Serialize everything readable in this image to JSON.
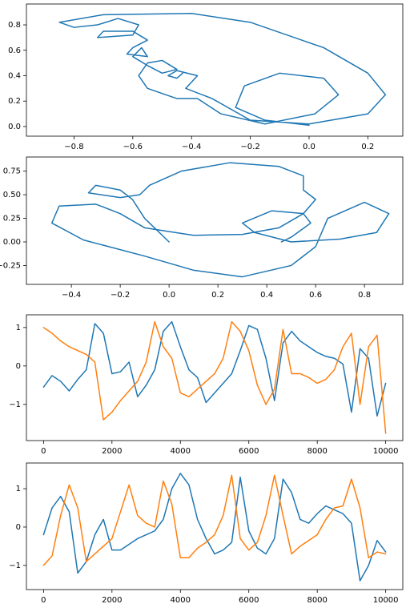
{
  "chart_data": [
    {
      "type": "line",
      "x": [
        0,
        -0.15,
        -0.25,
        -0.22,
        -0.1,
        0.05,
        0.1,
        0.02,
        -0.15,
        -0.3,
        -0.38,
        -0.45,
        -0.55,
        -0.58,
        -0.55,
        -0.5,
        -0.45,
        -0.5,
        -0.55,
        -0.6,
        -0.57,
        -0.55,
        -0.62,
        -0.6,
        -0.55,
        -0.6,
        -0.7,
        -0.72,
        -0.6,
        -0.58,
        -0.65,
        -0.72,
        -0.8,
        -0.85,
        -0.7,
        -0.4,
        -0.2,
        0.05,
        0.2,
        0.26,
        0.2,
        0,
        -0.2,
        -0.33,
        -0.42,
        -0.38,
        -0.45,
        -0.48,
        -0.45,
        -0.43
      ],
      "series": [
        {
          "color": "#1f77b4",
          "values": [
            0.01,
            0.05,
            0.15,
            0.32,
            0.42,
            0.38,
            0.25,
            0.1,
            0.02,
            0.1,
            0.22,
            0.22,
            0.3,
            0.4,
            0.5,
            0.52,
            0.45,
            0.42,
            0.48,
            0.55,
            0.62,
            0.55,
            0.57,
            0.62,
            0.68,
            0.75,
            0.75,
            0.7,
            0.72,
            0.8,
            0.85,
            0.8,
            0.78,
            0.82,
            0.88,
            0.89,
            0.82,
            0.62,
            0.42,
            0.25,
            0.1,
            0.02,
            0.05,
            0.22,
            0.3,
            0.4,
            0.44,
            0.4,
            0.38,
            0.42
          ]
        }
      ],
      "xlim": [
        -0.962,
        0.319
      ],
      "ylim": [
        -0.076,
        0.964
      ],
      "xticks": [
        {
          "value": -0.8,
          "label": "−0.8"
        },
        {
          "value": -0.6,
          "label": "−0.6"
        },
        {
          "value": -0.4,
          "label": "−0.4"
        },
        {
          "value": -0.2,
          "label": "−0.2"
        },
        {
          "value": 0,
          "label": "0.0"
        },
        0.2
      ],
      "yticks": [
        {
          "value": 0,
          "label": "0.0"
        },
        0.2,
        0.4,
        0.6,
        0.8
      ]
    },
    {
      "type": "line",
      "x": [
        0,
        -0.1,
        -0.15,
        -0.2,
        -0.3,
        -0.33,
        -0.2,
        -0.12,
        -0.08,
        0.05,
        0.25,
        0.45,
        0.55,
        0.55,
        0.6,
        0.55,
        0.45,
        0.3,
        0.1,
        -0.1,
        -0.2,
        -0.3,
        -0.45,
        -0.48,
        -0.35,
        -0.1,
        0.1,
        0.3,
        0.5,
        0.6,
        0.65,
        0.8,
        0.9,
        0.85,
        0.7,
        0.5,
        0.35,
        0.3,
        0.42,
        0.55,
        0.58,
        0.5,
        0.46
      ],
      "series": [
        {
          "color": "#1f77b4",
          "values": [
            0,
            0.25,
            0.45,
            0.55,
            0.6,
            0.52,
            0.47,
            0.5,
            0.6,
            0.75,
            0.84,
            0.8,
            0.7,
            0.55,
            0.45,
            0.3,
            0.15,
            0.08,
            0.07,
            0.15,
            0.3,
            0.4,
            0.38,
            0.2,
            0.02,
            -0.15,
            -0.3,
            -0.37,
            -0.25,
            -0.05,
            0.25,
            0.42,
            0.3,
            0.1,
            0.03,
            0,
            0.1,
            0.2,
            0.33,
            0.3,
            0.2,
            0.05,
            0
          ]
        }
      ],
      "xlim": [
        -0.584,
        0.957
      ],
      "ylim": [
        -0.45,
        0.9
      ],
      "xticks": [
        {
          "value": -0.4,
          "label": "−0.4"
        },
        {
          "value": -0.2,
          "label": "−0.2"
        },
        {
          "value": 0,
          "label": "0.0"
        },
        0.2,
        0.4,
        0.6,
        0.8
      ],
      "yticks": [
        {
          "value": -0.25,
          "label": "−0.25"
        },
        {
          "value": 0,
          "label": "0.00"
        },
        0.25,
        {
          "value": 0.5,
          "label": "0.50"
        },
        0.75
      ]
    },
    {
      "type": "line",
      "x": [
        0,
        250,
        500,
        750,
        1000,
        1250,
        1500,
        1750,
        2000,
        2250,
        2500,
        2750,
        3000,
        3250,
        3500,
        3750,
        4000,
        4250,
        4500,
        4750,
        5000,
        5250,
        5500,
        5750,
        6000,
        6250,
        6500,
        6750,
        7000,
        7250,
        7500,
        7750,
        8000,
        8250,
        8500,
        8750,
        9000,
        9250,
        9500,
        9750,
        10000
      ],
      "series": [
        {
          "color": "#1f77b4",
          "values": [
            -0.55,
            -0.25,
            -0.4,
            -0.65,
            -0.35,
            -0.1,
            1.1,
            0.85,
            -0.2,
            -0.15,
            0.1,
            -0.8,
            -0.5,
            -0.1,
            0.9,
            1.15,
            0.5,
            -0.1,
            -0.3,
            -0.95,
            -0.7,
            -0.45,
            -0.2,
            0.4,
            1.05,
            0.95,
            0.2,
            -0.9,
            0.6,
            0.9,
            0.65,
            0.5,
            0.35,
            0.25,
            0.2,
            0.05,
            -1.2,
            0.45,
            0.2,
            -1.3,
            -0.45
          ]
        },
        {
          "color": "#ff7f0e",
          "values": [
            1.0,
            0.85,
            0.65,
            0.5,
            0.4,
            0.3,
            0.1,
            -1.4,
            -1.2,
            -0.9,
            -0.65,
            -0.4,
            0.1,
            1.15,
            0.5,
            0.2,
            -0.7,
            -0.8,
            -0.6,
            -0.4,
            -0.2,
            0.2,
            1.15,
            0.9,
            0.4,
            -0.5,
            -1.0,
            -0.6,
            0.95,
            -0.2,
            -0.2,
            -0.3,
            -0.45,
            -0.35,
            -0.1,
            0.5,
            0.85,
            -1.0,
            0.5,
            0.8,
            -1.75
          ]
        }
      ],
      "xlim": [
        -500,
        10500
      ],
      "ylim": [
        -1.94,
        1.33
      ],
      "xticks": [
        0,
        2000,
        4000,
        6000,
        8000,
        10000
      ],
      "yticks": [
        {
          "value": -1,
          "label": "−1"
        },
        0,
        1
      ]
    },
    {
      "type": "line",
      "x": [
        0,
        250,
        500,
        750,
        1000,
        1250,
        1500,
        1750,
        2000,
        2250,
        2500,
        2750,
        3000,
        3250,
        3500,
        3750,
        4000,
        4250,
        4500,
        4750,
        5000,
        5250,
        5500,
        5750,
        6000,
        6250,
        6500,
        6750,
        7000,
        7250,
        7500,
        7750,
        8000,
        8250,
        8500,
        8750,
        9000,
        9250,
        9500,
        9750,
        10000
      ],
      "series": [
        {
          "color": "#1f77b4",
          "values": [
            -0.2,
            0.5,
            0.8,
            0.4,
            -1.2,
            -0.9,
            -0.2,
            0.2,
            -0.6,
            -0.6,
            -0.45,
            -0.3,
            -0.2,
            -0.1,
            0.2,
            1.0,
            1.4,
            1.1,
            0.2,
            -0.3,
            -0.7,
            -0.6,
            -0.4,
            1.3,
            -0.1,
            -0.55,
            -0.7,
            -0.3,
            1.25,
            0.9,
            0.2,
            0.1,
            0.35,
            0.55,
            0.45,
            0.35,
            0.1,
            -1.4,
            -1.0,
            -0.35,
            -0.65
          ]
        },
        {
          "color": "#ff7f0e",
          "values": [
            -1.0,
            -0.75,
            0.3,
            1.1,
            0.5,
            -0.9,
            -0.7,
            -0.5,
            -0.3,
            0.4,
            1.1,
            0.3,
            0.1,
            0.0,
            1.2,
            0.6,
            -0.8,
            -0.8,
            -0.55,
            -0.4,
            -0.2,
            0.3,
            1.35,
            -0.3,
            -0.6,
            -0.4,
            0.3,
            1.35,
            0.3,
            -0.7,
            -0.5,
            -0.35,
            -0.2,
            0.2,
            0.5,
            0.55,
            1.25,
            0.5,
            -0.8,
            -0.65,
            -0.7
          ]
        }
      ],
      "xlim": [
        -500,
        10500
      ],
      "ylim": [
        -1.63,
        1.67
      ],
      "xticks": [
        0,
        2000,
        4000,
        6000,
        8000,
        10000
      ],
      "yticks": [
        {
          "value": -1,
          "label": "−1"
        },
        0,
        1
      ]
    }
  ]
}
